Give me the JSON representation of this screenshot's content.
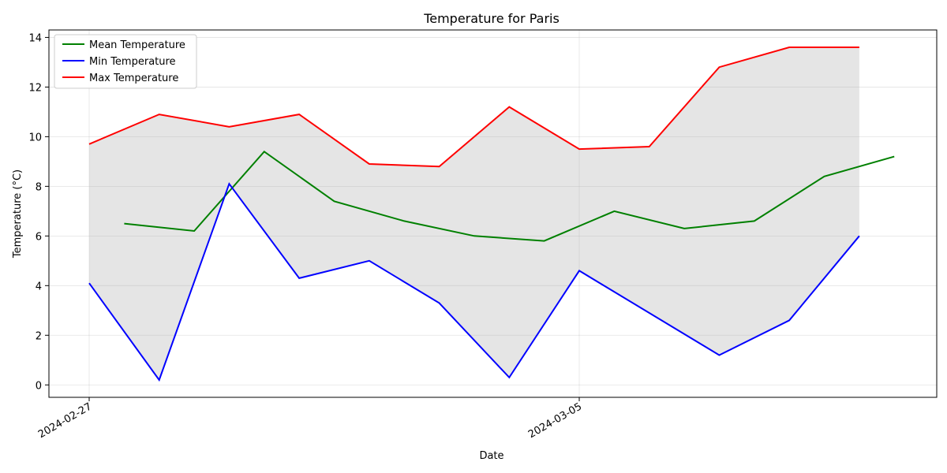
{
  "chart_data": {
    "type": "line",
    "title": "Temperature for Paris",
    "xlabel": "Date",
    "ylabel": "Temperature (°C)",
    "x_ticks": [
      "2024-02-27",
      "2024-03-05"
    ],
    "ylim": [
      -0.5,
      14.3
    ],
    "y_ticks": [
      0,
      2,
      4,
      6,
      8,
      10,
      12,
      14
    ],
    "grid": true,
    "legend_position": "top-left",
    "fill_between": {
      "lower_series": "Min Temperature",
      "upper_series": "Max Temperature",
      "color": "#e5e5e5"
    },
    "series": [
      {
        "name": "Mean Temperature",
        "color": "#008000",
        "points": [
          [
            "2024-02-27T12:00",
            6.5
          ],
          [
            "2024-02-28T12:00",
            6.2
          ],
          [
            "2024-02-29T12:00",
            9.4
          ],
          [
            "2024-03-01T12:00",
            7.4
          ],
          [
            "2024-03-02T12:00",
            6.6
          ],
          [
            "2024-03-03T12:00",
            6.0
          ],
          [
            "2024-03-04T12:00",
            5.8
          ],
          [
            "2024-03-05T12:00",
            7.0
          ],
          [
            "2024-03-06T12:00",
            6.3
          ],
          [
            "2024-03-07T12:00",
            6.6
          ],
          [
            "2024-03-08T12:00",
            8.4
          ],
          [
            "2024-03-09T12:00",
            9.2
          ]
        ]
      },
      {
        "name": "Min Temperature",
        "color": "#0000ff",
        "points": [
          [
            "2024-02-27T00:00",
            4.1
          ],
          [
            "2024-02-28T00:00",
            0.2
          ],
          [
            "2024-02-29T00:00",
            8.1
          ],
          [
            "2024-03-01T00:00",
            4.3
          ],
          [
            "2024-03-02T00:00",
            5.0
          ],
          [
            "2024-03-03T00:00",
            3.3
          ],
          [
            "2024-03-04T00:00",
            0.3
          ],
          [
            "2024-03-05T00:00",
            4.6
          ],
          [
            "2024-03-07T00:00",
            1.2
          ],
          [
            "2024-03-08T00:00",
            2.6
          ],
          [
            "2024-03-09T00:00",
            6.0
          ]
        ]
      },
      {
        "name": "Max Temperature",
        "color": "#ff0000",
        "points": [
          [
            "2024-02-27T00:00",
            9.7
          ],
          [
            "2024-02-28T00:00",
            10.9
          ],
          [
            "2024-02-29T00:00",
            10.4
          ],
          [
            "2024-03-01T00:00",
            10.9
          ],
          [
            "2024-03-02T00:00",
            8.9
          ],
          [
            "2024-03-03T00:00",
            8.8
          ],
          [
            "2024-03-04T00:00",
            11.2
          ],
          [
            "2024-03-05T00:00",
            9.5
          ],
          [
            "2024-03-06T00:00",
            9.6
          ],
          [
            "2024-03-07T00:00",
            12.8
          ],
          [
            "2024-03-08T00:00",
            13.6
          ],
          [
            "2024-03-09T00:00",
            13.6
          ]
        ]
      }
    ]
  }
}
